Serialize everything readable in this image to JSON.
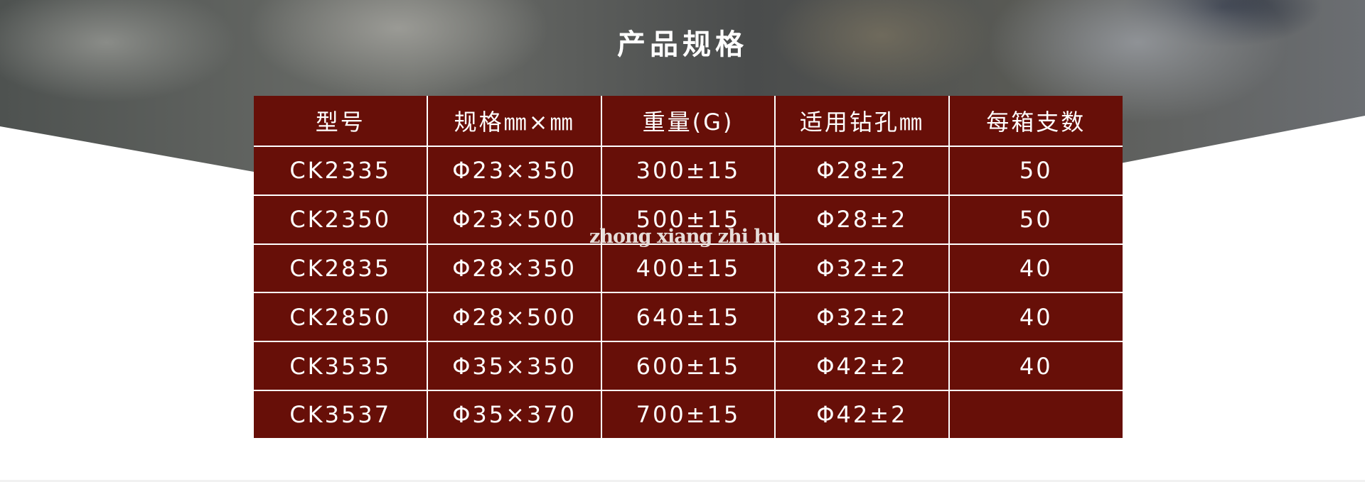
{
  "section": {
    "title": "产品规格",
    "watermark": "zhong xiang zhi hu"
  },
  "table": {
    "headers": [
      "型号",
      "规格㎜×㎜",
      "重量(G)",
      "适用钻孔㎜",
      "每箱支数"
    ],
    "rows": [
      [
        "CK2335",
        "Φ23×350",
        "300±15",
        "Φ28±2",
        "50"
      ],
      [
        "CK2350",
        "Φ23×500",
        "500±15",
        "Φ28±2",
        "50"
      ],
      [
        "CK2835",
        "Φ28×350",
        "400±15",
        "Φ32±2",
        "40"
      ],
      [
        "CK2850",
        "Φ28×500",
        "640±15",
        "Φ32±2",
        "40"
      ],
      [
        "CK3535",
        "Φ35×350",
        "600±15",
        "Φ42±2",
        "40"
      ],
      [
        "CK3537",
        "Φ35×370",
        "700±15",
        "Φ42±2",
        ""
      ]
    ],
    "colors": {
      "cell_background": "#670f08",
      "text": "#ffffff",
      "grid": "#ffffff"
    }
  }
}
